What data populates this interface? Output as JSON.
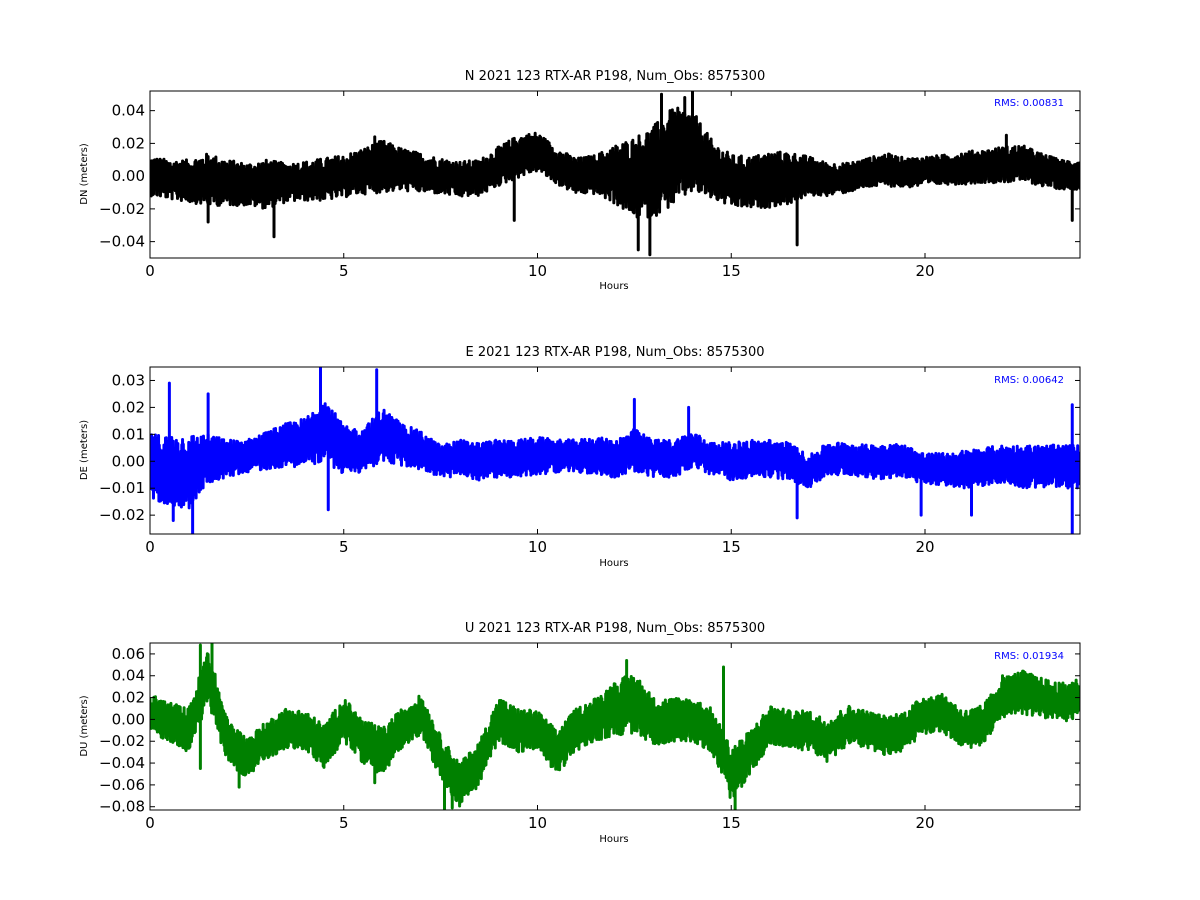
{
  "chart_data": [
    {
      "type": "line",
      "title": "N 2021 123 RTX-AR  P198, Num_Obs: 8575300",
      "xlabel": "Hours",
      "ylabel": "DN (meters)",
      "annotation": "RMS:  0.00831",
      "annotation_color": "#0000ff",
      "color": "#000000",
      "xlim": [
        0,
        24
      ],
      "ylim": [
        -0.05,
        0.052
      ],
      "xticks": [
        0,
        5,
        10,
        15,
        20
      ],
      "yticks": [
        -0.04,
        -0.02,
        0.0,
        0.02,
        0.04
      ],
      "ytick_labels": [
        "−0.04",
        "−0.02",
        "0.00",
        "0.02",
        "0.04"
      ],
      "grid": false,
      "series": [
        {
          "x": [
            0,
            0.5,
            1,
            1.5,
            2,
            2.5,
            3,
            3.5,
            4,
            4.5,
            5,
            5.5,
            6,
            6.5,
            7,
            7.5,
            8,
            8.5,
            9,
            9.5,
            10,
            10.5,
            11,
            11.5,
            12,
            12.5,
            13,
            13.5,
            14,
            14.5,
            15,
            15.5,
            16,
            16.5,
            17,
            17.5,
            18,
            18.5,
            19,
            19.5,
            20,
            20.5,
            21,
            21.5,
            22,
            22.5,
            23,
            23.5,
            24
          ],
          "center": [
            0.0,
            -0.002,
            -0.003,
            -0.002,
            -0.004,
            -0.005,
            -0.005,
            -0.004,
            -0.003,
            -0.002,
            0.0,
            0.003,
            0.006,
            0.004,
            0.002,
            0.0,
            -0.002,
            -0.001,
            0.006,
            0.012,
            0.015,
            0.006,
            0.0,
            0.001,
            0.001,
            -0.001,
            0.003,
            0.012,
            0.015,
            0.004,
            -0.003,
            -0.004,
            -0.002,
            -0.001,
            0.0,
            -0.002,
            -0.001,
            0.002,
            0.004,
            0.002,
            0.003,
            0.004,
            0.005,
            0.006,
            0.007,
            0.008,
            0.004,
            0.001,
            0.001
          ],
          "spread": [
            0.012,
            0.012,
            0.013,
            0.016,
            0.014,
            0.013,
            0.015,
            0.012,
            0.012,
            0.013,
            0.013,
            0.014,
            0.016,
            0.013,
            0.012,
            0.011,
            0.011,
            0.011,
            0.012,
            0.013,
            0.012,
            0.011,
            0.011,
            0.012,
            0.018,
            0.025,
            0.028,
            0.03,
            0.025,
            0.018,
            0.016,
            0.016,
            0.017,
            0.016,
            0.012,
            0.01,
            0.009,
            0.009,
            0.01,
            0.009,
            0.009,
            0.009,
            0.01,
            0.01,
            0.011,
            0.011,
            0.01,
            0.009,
            0.009
          ],
          "spikes": [
            [
              1.5,
              -0.028
            ],
            [
              3.2,
              -0.037
            ],
            [
              5.8,
              0.024
            ],
            [
              9.4,
              -0.027
            ],
            [
              12.6,
              -0.045
            ],
            [
              12.9,
              -0.048
            ],
            [
              13.2,
              0.05
            ],
            [
              13.8,
              0.048
            ],
            [
              14.0,
              0.052
            ],
            [
              16.7,
              -0.042
            ],
            [
              22.1,
              0.025
            ],
            [
              23.8,
              -0.027
            ]
          ]
        }
      ]
    },
    {
      "type": "line",
      "title": "E 2021 123 RTX-AR  P198, Num_Obs: 8575300",
      "xlabel": "Hours",
      "ylabel": "DE (meters)",
      "annotation": "RMS:  0.00642",
      "annotation_color": "#0000ff",
      "color": "#0000ff",
      "xlim": [
        0,
        24
      ],
      "ylim": [
        -0.027,
        0.035
      ],
      "xticks": [
        0,
        5,
        10,
        15,
        20
      ],
      "yticks": [
        -0.02,
        -0.01,
        0.0,
        0.01,
        0.02,
        0.03
      ],
      "ytick_labels": [
        "−0.02",
        "−0.01",
        "0.00",
        "0.01",
        "0.02",
        "0.03"
      ],
      "grid": false,
      "series": [
        {
          "x": [
            0,
            0.5,
            1,
            1.5,
            2,
            2.5,
            3,
            3.5,
            4,
            4.5,
            5,
            5.5,
            6,
            6.5,
            7,
            7.5,
            8,
            8.5,
            9,
            9.5,
            10,
            10.5,
            11,
            11.5,
            12,
            12.5,
            13,
            13.5,
            14,
            14.5,
            15,
            15.5,
            16,
            16.5,
            17,
            17.5,
            18,
            18.5,
            19,
            19.5,
            20,
            20.5,
            21,
            21.5,
            22,
            22.5,
            23,
            23.5,
            24
          ],
          "center": [
            -0.002,
            -0.003,
            -0.004,
            0.001,
            0.001,
            0.002,
            0.004,
            0.006,
            0.007,
            0.012,
            0.004,
            0.004,
            0.01,
            0.006,
            0.004,
            0.0,
            0.001,
            0.0,
            0.001,
            0.001,
            0.002,
            0.002,
            0.002,
            0.002,
            0.001,
            0.004,
            0.001,
            0.001,
            0.004,
            0.001,
            0.0,
            0.001,
            0.001,
            0.0,
            -0.004,
            0.001,
            0.001,
            0.0,
            0.0,
            0.0,
            -0.003,
            -0.003,
            -0.003,
            -0.002,
            -0.001,
            -0.002,
            -0.002,
            -0.002,
            -0.002
          ],
          "spread": [
            0.012,
            0.013,
            0.014,
            0.009,
            0.007,
            0.006,
            0.007,
            0.008,
            0.009,
            0.012,
            0.009,
            0.008,
            0.01,
            0.008,
            0.007,
            0.006,
            0.007,
            0.007,
            0.007,
            0.007,
            0.007,
            0.006,
            0.006,
            0.007,
            0.007,
            0.008,
            0.007,
            0.007,
            0.007,
            0.006,
            0.007,
            0.007,
            0.007,
            0.007,
            0.006,
            0.006,
            0.006,
            0.006,
            0.007,
            0.006,
            0.006,
            0.006,
            0.007,
            0.007,
            0.007,
            0.008,
            0.008,
            0.008,
            0.008
          ],
          "spikes": [
            [
              0.5,
              0.029
            ],
            [
              0.6,
              -0.022
            ],
            [
              1.1,
              -0.027
            ],
            [
              1.5,
              0.025
            ],
            [
              4.4,
              0.035
            ],
            [
              4.6,
              -0.018
            ],
            [
              5.85,
              0.034
            ],
            [
              12.5,
              0.023
            ],
            [
              13.9,
              0.02
            ],
            [
              16.7,
              -0.021
            ],
            [
              19.9,
              -0.02
            ],
            [
              21.2,
              -0.02
            ],
            [
              23.8,
              -0.027
            ],
            [
              23.8,
              0.021
            ]
          ]
        }
      ]
    },
    {
      "type": "line",
      "title": "U 2021 123 RTX-AR  P198, Num_Obs: 8575300",
      "xlabel": "Hours",
      "ylabel": "DU (meters)",
      "annotation": "RMS:  0.01934",
      "annotation_color": "#0000ff",
      "color": "#008000",
      "xlim": [
        0,
        24
      ],
      "ylim": [
        -0.083,
        0.07
      ],
      "xticks": [
        0,
        5,
        10,
        15,
        20
      ],
      "yticks": [
        -0.08,
        -0.06,
        -0.04,
        -0.02,
        0.0,
        0.02,
        0.04,
        0.06
      ],
      "ytick_labels": [
        "−0.08",
        "−0.06",
        "−0.04",
        "−0.02",
        "0.00",
        "0.02",
        "0.04",
        "0.06"
      ],
      "grid": false,
      "series": [
        {
          "x": [
            0,
            0.5,
            1,
            1.5,
            2,
            2.5,
            3,
            3.5,
            4,
            4.5,
            5,
            5.5,
            6,
            6.5,
            7,
            7.5,
            8,
            8.5,
            9,
            9.5,
            10,
            10.5,
            11,
            11.5,
            12,
            12.5,
            13,
            13.5,
            14,
            14.5,
            15,
            15.5,
            16,
            16.5,
            17,
            17.5,
            18,
            18.5,
            19,
            19.5,
            20,
            20.5,
            21,
            21.5,
            22,
            22.5,
            23,
            23.5,
            24
          ],
          "center": [
            0.005,
            -0.002,
            -0.01,
            0.04,
            -0.02,
            -0.035,
            -0.02,
            -0.008,
            -0.01,
            -0.025,
            0.0,
            -0.02,
            -0.03,
            -0.008,
            0.005,
            -0.035,
            -0.06,
            -0.04,
            0.0,
            -0.01,
            -0.01,
            -0.03,
            -0.01,
            0.0,
            0.01,
            0.015,
            -0.002,
            0.0,
            0.0,
            -0.01,
            -0.05,
            -0.03,
            -0.005,
            -0.01,
            -0.01,
            -0.02,
            -0.005,
            -0.01,
            -0.015,
            -0.01,
            0.005,
            0.005,
            -0.01,
            -0.005,
            0.02,
            0.025,
            0.02,
            0.015,
            0.02
          ],
          "spread": [
            0.018,
            0.018,
            0.02,
            0.025,
            0.02,
            0.018,
            0.018,
            0.018,
            0.018,
            0.02,
            0.02,
            0.02,
            0.022,
            0.018,
            0.018,
            0.02,
            0.02,
            0.02,
            0.02,
            0.02,
            0.018,
            0.02,
            0.02,
            0.02,
            0.025,
            0.028,
            0.022,
            0.02,
            0.02,
            0.02,
            0.025,
            0.02,
            0.018,
            0.018,
            0.018,
            0.02,
            0.018,
            0.018,
            0.018,
            0.018,
            0.018,
            0.018,
            0.018,
            0.018,
            0.018,
            0.02,
            0.018,
            0.018,
            0.018
          ],
          "spikes": [
            [
              1.3,
              0.068
            ],
            [
              1.6,
              0.07
            ],
            [
              1.3,
              -0.045
            ],
            [
              2.3,
              -0.062
            ],
            [
              5.8,
              -0.058
            ],
            [
              7.6,
              -0.082
            ],
            [
              7.8,
              -0.081
            ],
            [
              12.3,
              0.054
            ],
            [
              14.8,
              0.048
            ],
            [
              15.1,
              -0.083
            ],
            [
              22.0,
              0.04
            ]
          ]
        }
      ]
    }
  ]
}
